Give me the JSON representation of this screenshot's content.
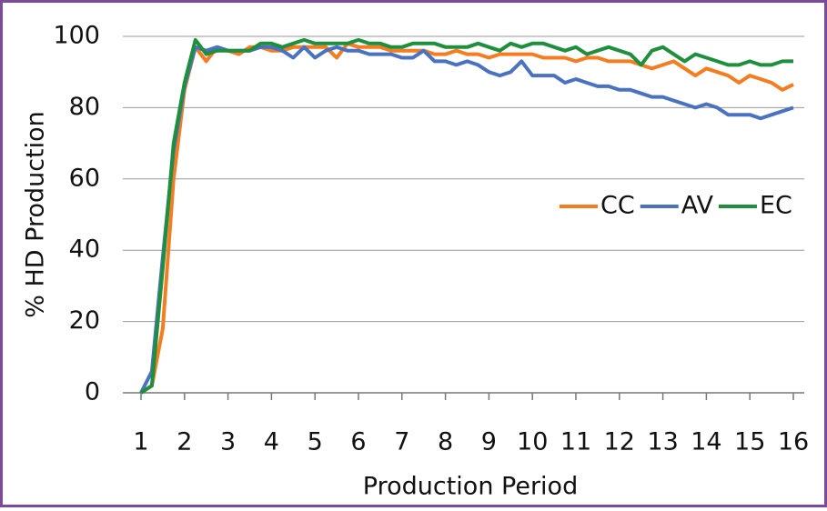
{
  "chart_data": {
    "type": "line",
    "x_label": "Production Period",
    "y_label": "% HD Production",
    "x": [
      1,
      1.25,
      1.5,
      1.75,
      2,
      2.25,
      2.5,
      2.75,
      3,
      3.25,
      3.5,
      3.75,
      4,
      4.25,
      4.5,
      4.75,
      5,
      5.25,
      5.5,
      5.75,
      6,
      6.25,
      6.5,
      6.75,
      7,
      7.25,
      7.5,
      7.75,
      8,
      8.25,
      8.5,
      8.75,
      9,
      9.25,
      9.5,
      9.75,
      10,
      10.25,
      10.5,
      10.75,
      11,
      11.25,
      11.5,
      11.75,
      12,
      12.25,
      12.5,
      12.75,
      13,
      13.25,
      13.5,
      13.75,
      14,
      14.25,
      14.5,
      14.75,
      15,
      15.25,
      15.5,
      15.75,
      16
    ],
    "series": [
      {
        "name": "CC",
        "color": "#f47d22",
        "values": [
          0,
          2,
          18,
          60,
          85,
          97,
          93,
          97,
          96,
          95,
          97,
          97,
          96,
          96,
          97,
          97,
          97,
          97,
          94,
          98,
          97,
          97,
          97,
          96,
          96,
          96,
          96,
          95,
          95,
          96,
          95,
          95,
          94,
          95,
          95,
          95,
          95,
          94,
          94,
          94,
          93,
          94,
          94,
          93,
          93,
          93,
          92,
          91,
          92,
          93,
          91,
          89,
          91,
          90,
          89,
          87,
          89,
          88,
          87,
          85,
          86.5
        ]
      },
      {
        "name": "AV",
        "color": "#4a72c0",
        "values": [
          0,
          6,
          38,
          68,
          86,
          97,
          96,
          97,
          96,
          96,
          96,
          97,
          97,
          96,
          94,
          97,
          94,
          96,
          97,
          96,
          96,
          95,
          95,
          95,
          94,
          94,
          96,
          93,
          93,
          92,
          93,
          92,
          90,
          89,
          90,
          93,
          89,
          89,
          89,
          87,
          88,
          87,
          86,
          86,
          85,
          85,
          84,
          83,
          83,
          82,
          81,
          80,
          81,
          80,
          78,
          78,
          78,
          77,
          78,
          79,
          80
        ]
      },
      {
        "name": "EC",
        "color": "#1f8f3e",
        "values": [
          0,
          2,
          35,
          70,
          87,
          99,
          95,
          96,
          96,
          96,
          96,
          98,
          98,
          97,
          98,
          99,
          98,
          98,
          98,
          98,
          99,
          98,
          98,
          97,
          97,
          98,
          98,
          98,
          97,
          97,
          97,
          98,
          97,
          96,
          98,
          97,
          98,
          98,
          97,
          96,
          97,
          95,
          96,
          97,
          96,
          95,
          92,
          96,
          97,
          95,
          93,
          95,
          94,
          93,
          92,
          92,
          93,
          92,
          92,
          93,
          93
        ]
      }
    ],
    "xlim": [
      1,
      16
    ],
    "xticks": [
      1,
      2,
      3,
      4,
      5,
      6,
      7,
      8,
      9,
      10,
      11,
      12,
      13,
      14,
      15,
      16
    ],
    "ylim": [
      0,
      100
    ],
    "yticks": [
      0,
      20,
      40,
      60,
      80,
      100
    ],
    "grid": true,
    "legend": "right"
  }
}
